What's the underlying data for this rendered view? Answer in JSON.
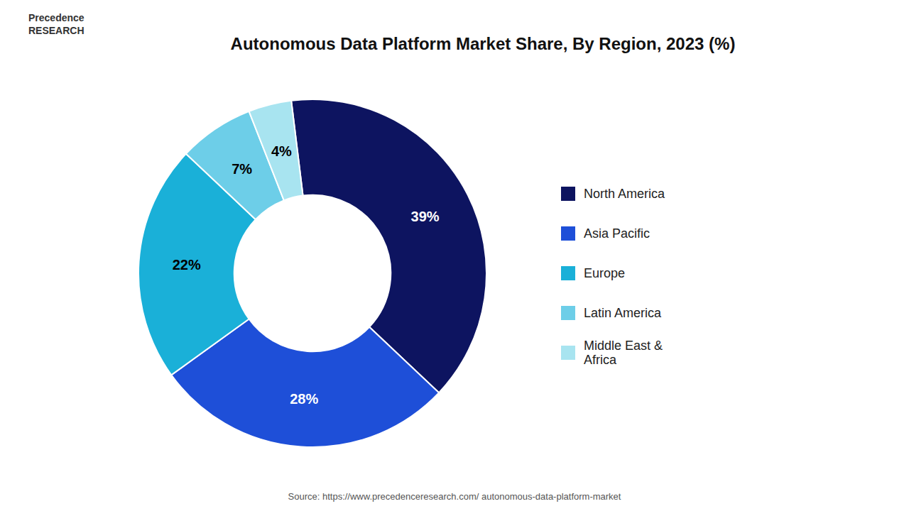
{
  "chart_data": {
    "type": "donut",
    "title": "Autonomous Data Platform Market Share, By Region, 2023 (%)",
    "categories": [
      "North America",
      "Asia Pacific",
      "Europe",
      "Latin America",
      "Middle East &\nAfrica"
    ],
    "values": [
      39,
      28,
      22,
      7,
      4
    ],
    "value_labels": [
      "39%",
      "28%",
      "22%",
      "7%",
      "4%"
    ],
    "colors": [
      "#0d1460",
      "#1e4fd8",
      "#1ab0d8",
      "#6dcee8",
      "#a8e4f0"
    ],
    "data_labels": true,
    "legend": "right",
    "annotations": [
      "Source: https://www.precedenceresearch.com/ autonomous-data-platform-market",
      "Precedence\nRESEARCH"
    ]
  }
}
